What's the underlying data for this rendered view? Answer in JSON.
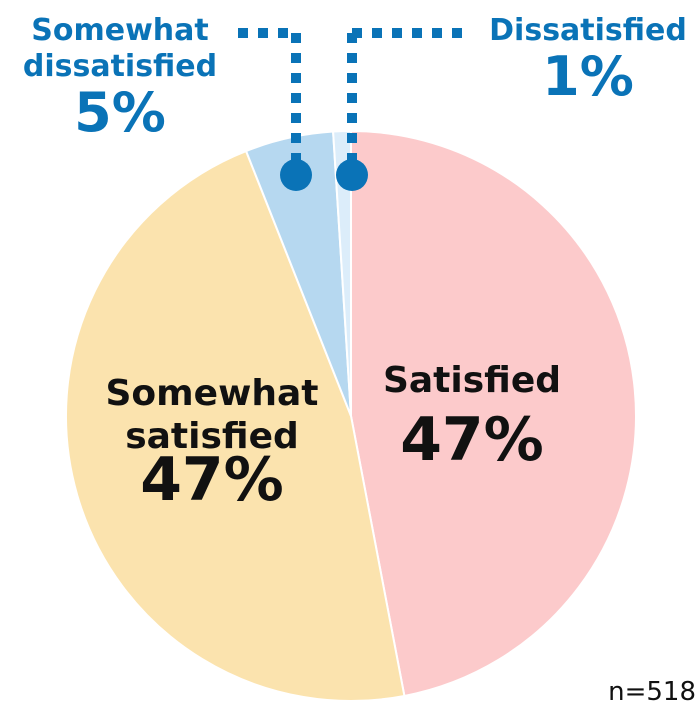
{
  "chart_data": {
    "type": "pie",
    "slices": [
      {
        "label_lines": [
          "Satisfied"
        ],
        "value": 47,
        "value_label": "47%",
        "color": "#fccacb",
        "label_color": "#111111"
      },
      {
        "label_lines": [
          "Somewhat",
          "satisfied"
        ],
        "value": 47,
        "value_label": "47%",
        "color": "#fbe3ae",
        "label_color": "#111111"
      },
      {
        "label_lines": [
          "Somewhat",
          "dissatisfied"
        ],
        "value": 5,
        "value_label": "5%",
        "color": "#b6d8f0",
        "label_color": "#0a73b7"
      },
      {
        "label_lines": [
          "Dissatisfied"
        ],
        "value": 1,
        "value_label": "1%",
        "color": "#dcedfa",
        "label_color": "#0a73b7"
      }
    ],
    "start": "12 o'clock",
    "direction": "clockwise",
    "leader_color": "#0a73b7"
  },
  "footnote": "n=518"
}
